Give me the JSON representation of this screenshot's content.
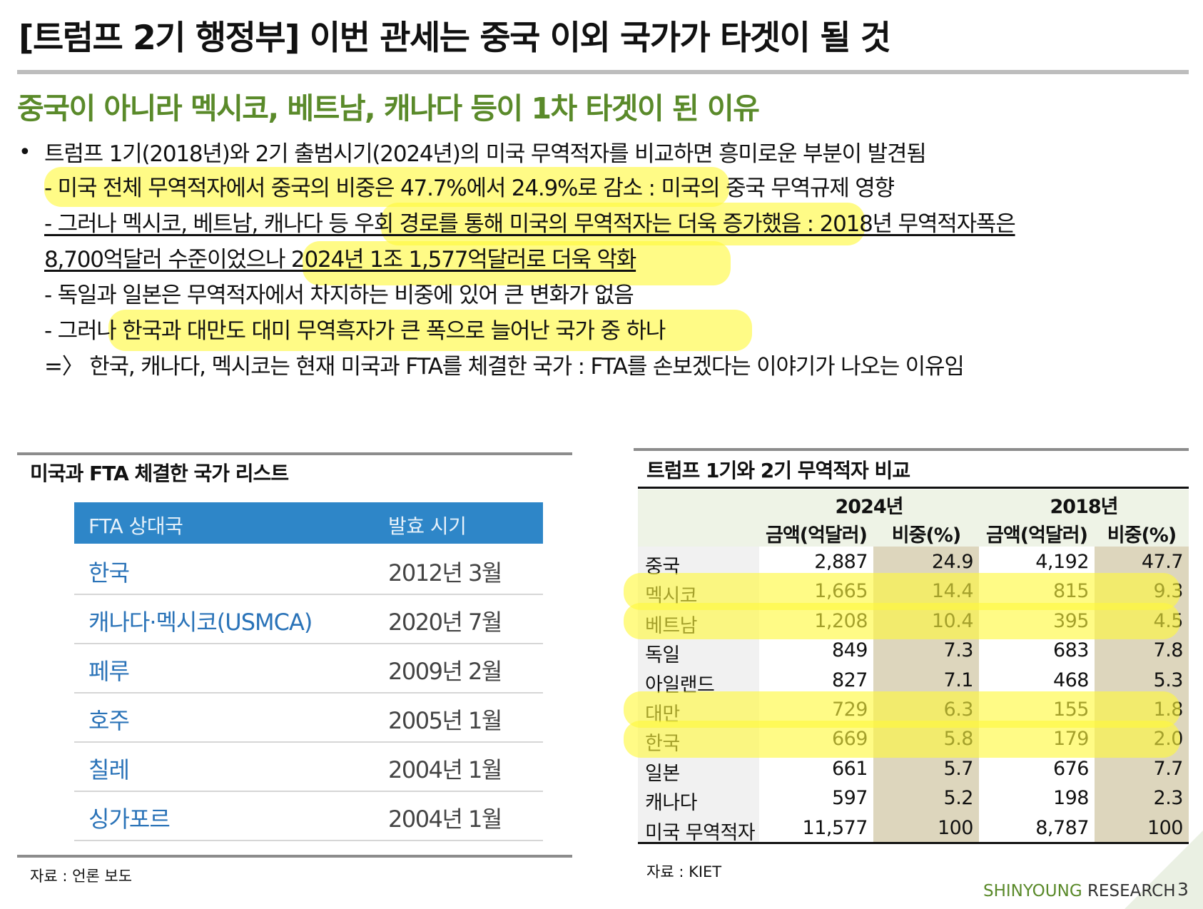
{
  "title": "[트럼프 2기 행정부] 이번 관세는 중국 이외 국가가 타겟이 될 것",
  "subtitle": "중국이 아니라 멕시코, 베트남, 캐나다 등이 1차 타겟이 된 이유",
  "bullet": {
    "l1": "트럼프 1기(2018년)와 2기 출범시기(2024년)의 미국 무역적자를 비교하면 흥미로운 부분이 발견됨",
    "l2a": "- 미국 전체 무역적자에서 중국의 비중은 47.7%에서 24.9%로 감소",
    "l2b": " : 미국의 중국 무역규제 영향",
    "l3": "- 그러나 멕시코, 베트남, 캐나다 등 우회 경로를 통해 미국의 무역적자는 더욱 증가했음 : 2018년 무역적자폭은",
    "l4": "8,700억달러 수준이었으나 2024년 1조 1,577억달러로 더욱 악화",
    "l5": "- 독일과 일본은 무역적자에서 차지하는 비중에 있어 큰 변화가 없음",
    "l6": "- 그러나 한국과 대만도 대미 무역흑자가 큰 폭으로 늘어난 국가 중 하나",
    "l7": "=〉 한국, 캐나다, 멕시코는 현재 미국과 FTA를 체결한 국가 : FTA를 손보겠다는 이야기가 나오는 이유임"
  },
  "fta": {
    "title": "미국과 FTA 체결한 국가 리스트",
    "col1": "FTA 상대국",
    "col2": "발효 시기",
    "rows": [
      {
        "country": "한국",
        "date": "2012년 3월"
      },
      {
        "country": "캐나다·멕시코(USMCA)",
        "date": "2020년 7월"
      },
      {
        "country": "페루",
        "date": "2009년 2월"
      },
      {
        "country": "호주",
        "date": "2005년 1월"
      },
      {
        "country": "칠레",
        "date": "2004년 1월"
      },
      {
        "country": "싱가포르",
        "date": "2004년 1월"
      }
    ],
    "source": "자료 : 언론 보도"
  },
  "trade": {
    "title": "트럼프 1기와 2기 무역적자 비교",
    "year_a": "2024년",
    "year_b": "2018년",
    "amount_label": "금액(억달러)",
    "share_label": "비중(%)",
    "rows": [
      {
        "country": "중국",
        "a24": "2,887",
        "s24": "24.9",
        "a18": "4,192",
        "s18": "47.7"
      },
      {
        "country": "멕시코",
        "a24": "1,665",
        "s24": "14.4",
        "a18": "815",
        "s18": "9.3"
      },
      {
        "country": "베트남",
        "a24": "1,208",
        "s24": "10.4",
        "a18": "395",
        "s18": "4.5"
      },
      {
        "country": "독일",
        "a24": "849",
        "s24": "7.3",
        "a18": "683",
        "s18": "7.8"
      },
      {
        "country": "아일랜드",
        "a24": "827",
        "s24": "7.1",
        "a18": "468",
        "s18": "5.3"
      },
      {
        "country": "대만",
        "a24": "729",
        "s24": "6.3",
        "a18": "155",
        "s18": "1.8"
      },
      {
        "country": "한국",
        "a24": "669",
        "s24": "5.8",
        "a18": "179",
        "s18": "2.0"
      },
      {
        "country": "일본",
        "a24": "661",
        "s24": "5.7",
        "a18": "676",
        "s18": "7.7"
      },
      {
        "country": "캐나다",
        "a24": "597",
        "s24": "5.2",
        "a18": "198",
        "s18": "2.3"
      },
      {
        "country": "미국 무역적자",
        "a24": "11,577",
        "s24": "100",
        "a18": "8,787",
        "s18": "100"
      }
    ],
    "source": "자료 : KIET"
  },
  "footer": {
    "brand_a": "SHINYOUNG",
    "brand_b": " RESEARCH",
    "page": "3"
  },
  "colors": {
    "accent_green": "#5a8a2a",
    "highlight_yellow": "#fff83c",
    "table_blue": "#2e86c8"
  }
}
